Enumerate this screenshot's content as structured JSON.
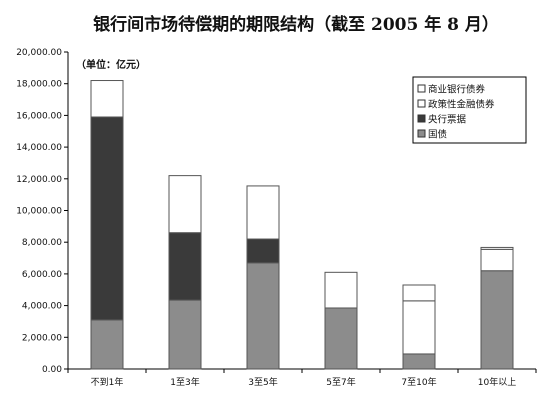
{
  "chart_data": {
    "type": "bar",
    "stacked": true,
    "title": "银行间市场待偿期的期限结构（截至 2005 年 8 月）",
    "unit_label": "（单位：亿元）",
    "categories": [
      "不到1年",
      "1至3年",
      "3至5年",
      "5至7年",
      "7至10年",
      "10年以上"
    ],
    "y_ticks": [
      "0.00",
      "2,000.00",
      "4,000.00",
      "6,000.00",
      "8,000.00",
      "10,000.00",
      "12,000.00",
      "14,000.00",
      "16,000.00",
      "18,000.00",
      "20,000.00"
    ],
    "ylim": [
      0,
      20000
    ],
    "legend_position": "top-right",
    "series": [
      {
        "name": "国债",
        "color": "#8c8c8c",
        "values": [
          3100,
          4350,
          6700,
          3850,
          950,
          6200
        ]
      },
      {
        "name": "央行票据",
        "color": "#3a3a3a",
        "values": [
          12800,
          4250,
          1500,
          0,
          0,
          0
        ]
      },
      {
        "name": "政策性金融债券",
        "color": "#ffffff",
        "values": [
          2300,
          3600,
          3350,
          2250,
          3350,
          1350
        ]
      },
      {
        "name": "商业银行债券",
        "color": "#ffffff",
        "values": [
          0,
          0,
          0,
          0,
          1000,
          120
        ]
      }
    ],
    "legend_order": [
      3,
      2,
      1,
      0
    ]
  }
}
